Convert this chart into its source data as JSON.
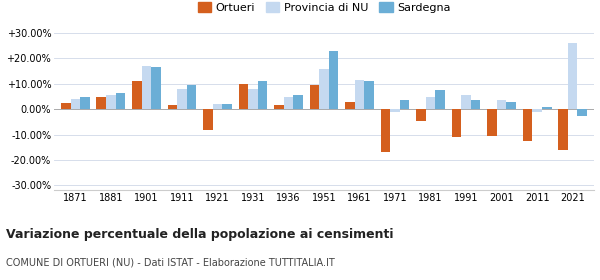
{
  "years": [
    1871,
    1881,
    1901,
    1911,
    1921,
    1931,
    1936,
    1951,
    1961,
    1971,
    1981,
    1991,
    2001,
    2011,
    2021
  ],
  "ortueri": [
    2.5,
    5.0,
    11.0,
    1.5,
    -8.0,
    10.0,
    1.5,
    9.5,
    3.0,
    -17.0,
    -4.5,
    -11.0,
    -10.5,
    -12.5,
    -16.0
  ],
  "provincia_nu": [
    4.0,
    5.5,
    17.0,
    8.0,
    2.0,
    8.0,
    5.0,
    16.0,
    11.5,
    -1.0,
    5.0,
    5.5,
    3.5,
    -1.0,
    26.0
  ],
  "sardegna": [
    5.0,
    6.5,
    16.5,
    9.5,
    2.0,
    11.0,
    5.5,
    23.0,
    11.0,
    3.5,
    7.5,
    3.5,
    3.0,
    1.0,
    -2.5
  ],
  "ortueri_color": "#d45f1e",
  "provincia_nu_color": "#c5d9f0",
  "sardegna_color": "#6baed6",
  "title": "Variazione percentuale della popolazione ai censimenti",
  "subtitle": "COMUNE DI ORTUERI (NU) - Dati ISTAT - Elaborazione TUTTITALIA.IT",
  "ylim": [
    -32,
    32
  ],
  "yticks": [
    -30,
    -20,
    -10,
    0,
    10,
    20,
    30
  ],
  "ytick_labels": [
    "-30.00%",
    "-20.00%",
    "-10.00%",
    "0.00%",
    "+10.00%",
    "+20.00%",
    "+30.00%"
  ],
  "legend_labels": [
    "Ortueri",
    "Provincia di NU",
    "Sardegna"
  ],
  "background_color": "#ffffff",
  "grid_color": "#d0d8e8"
}
